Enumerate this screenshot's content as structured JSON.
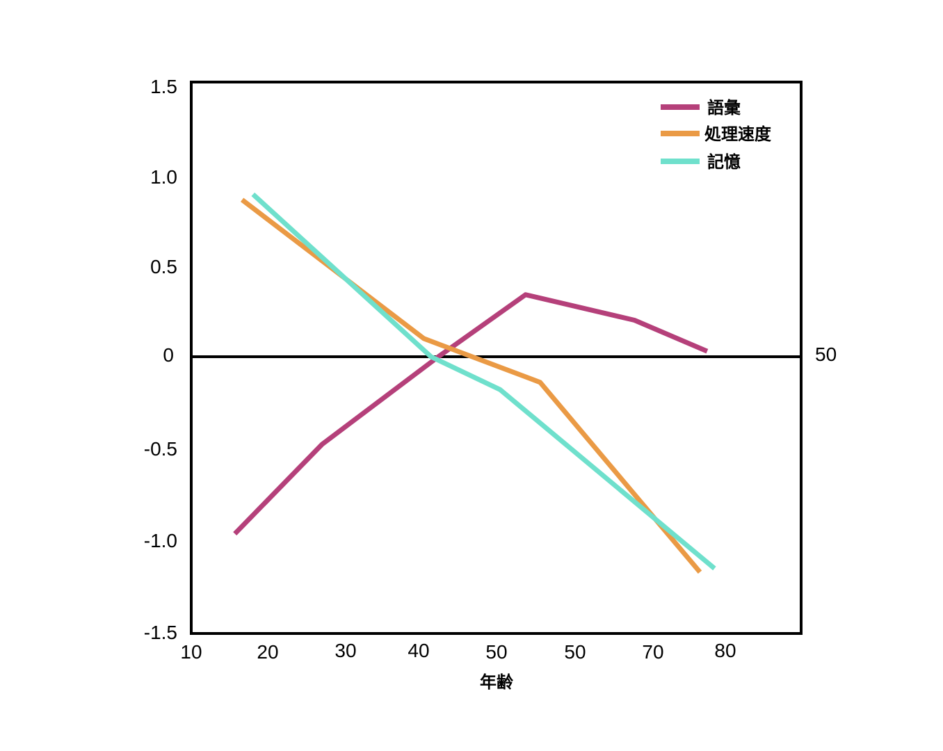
{
  "chart_data": {
    "type": "line",
    "title": "",
    "xlabel": "年齢",
    "ylabel": "",
    "ylim": [
      -1.5,
      1.5
    ],
    "y_ticks": [
      "1.5",
      "1.0",
      "0.5",
      "0",
      "-0.5",
      "-1.0",
      "-1.5"
    ],
    "x_ticks": [
      "10",
      "20",
      "30",
      "40",
      "50",
      "50",
      "70",
      "80"
    ],
    "right_label": "50",
    "grid": false,
    "legend_position": "top-right",
    "series": [
      {
        "name": "語彙",
        "color": "#b5407a",
        "points": [
          [
            16,
            -0.97
          ],
          [
            28,
            -0.48
          ],
          [
            44,
            0.0
          ],
          [
            56,
            0.34
          ],
          [
            71,
            0.2
          ],
          [
            81,
            0.03
          ]
        ]
      },
      {
        "name": "処理速度",
        "color": "#ea9a45",
        "points": [
          [
            17,
            0.86
          ],
          [
            42,
            0.1
          ],
          [
            58,
            -0.14
          ],
          [
            80,
            -1.18
          ]
        ]
      },
      {
        "name": "記憶",
        "color": "#6fe0cc",
        "points": [
          [
            18.5,
            0.89
          ],
          [
            43,
            0.0
          ],
          [
            52.5,
            -0.18
          ],
          [
            82,
            -1.16
          ]
        ]
      }
    ]
  }
}
